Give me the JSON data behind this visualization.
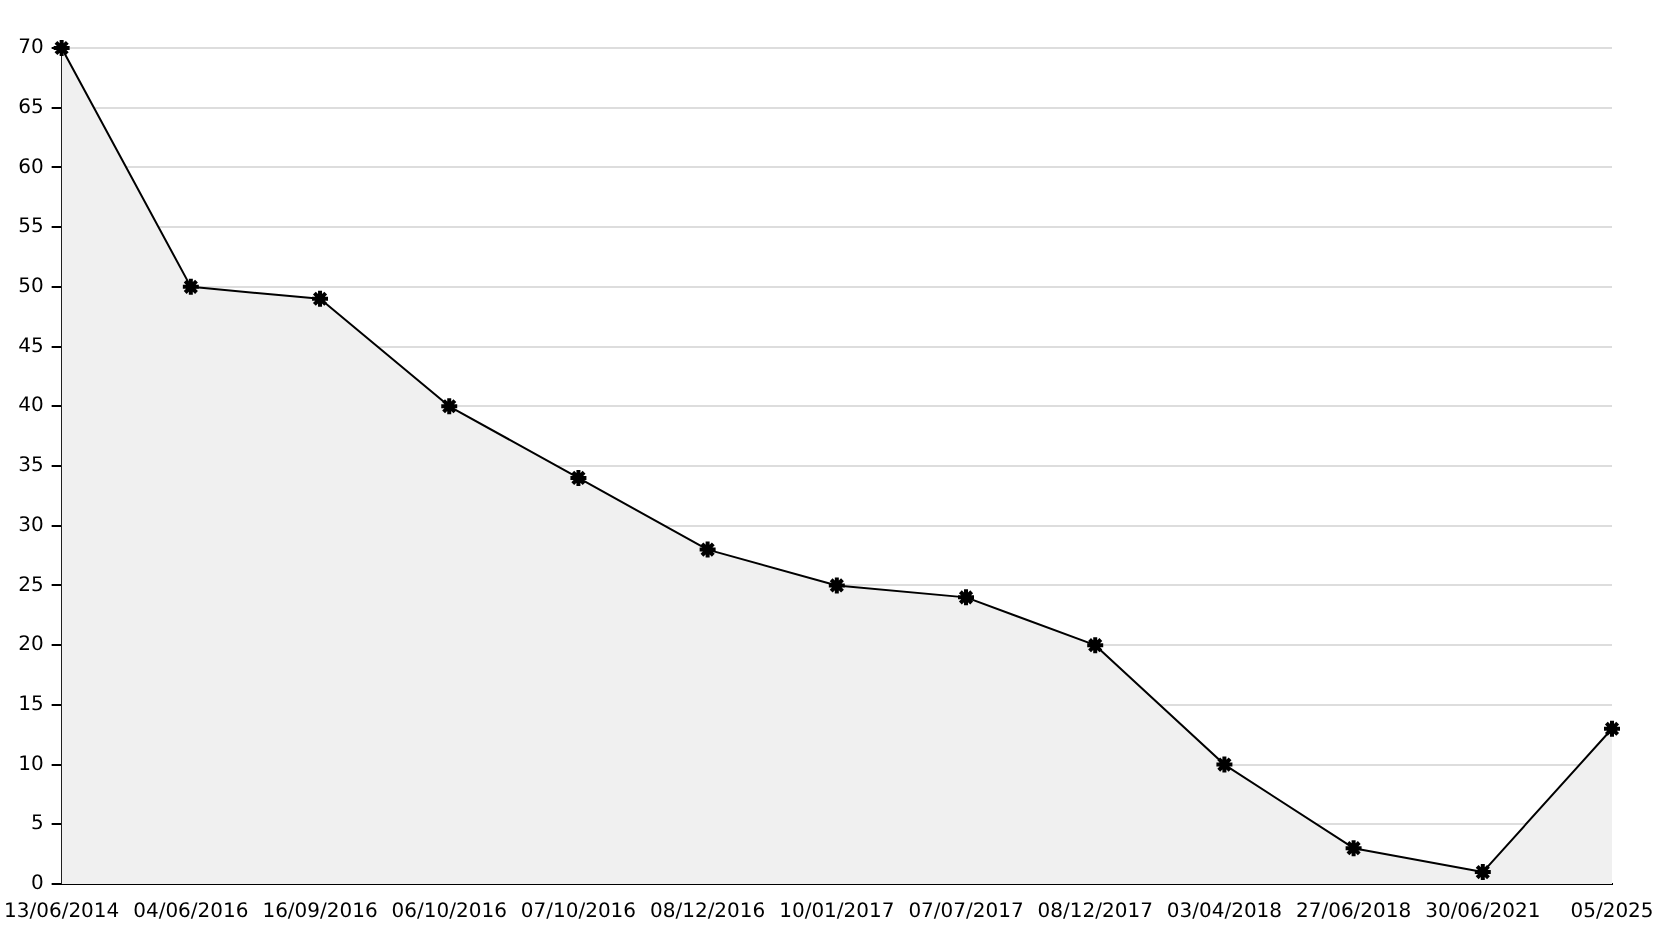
{
  "chart_data": {
    "type": "area",
    "categories": [
      "13/06/2014",
      "04/06/2016",
      "16/09/2016",
      "06/10/2016",
      "07/10/2016",
      "08/12/2016",
      "10/01/2017",
      "07/07/2017",
      "08/12/2017",
      "03/04/2018",
      "27/06/2018",
      "30/06/2021",
      "05/2025"
    ],
    "series": [
      {
        "color": "#000000",
        "values": [
          70,
          50,
          49,
          40,
          34,
          28,
          25,
          24,
          20,
          10,
          3,
          1,
          13
        ]
      }
    ],
    "ylim": [
      0,
      70
    ],
    "yticks": [
      0,
      5,
      10,
      15,
      20,
      25,
      30,
      35,
      40,
      45,
      50,
      55,
      60,
      65,
      70
    ],
    "grid": "y",
    "legend": false,
    "marker": "cross",
    "line_style": "solid"
  }
}
